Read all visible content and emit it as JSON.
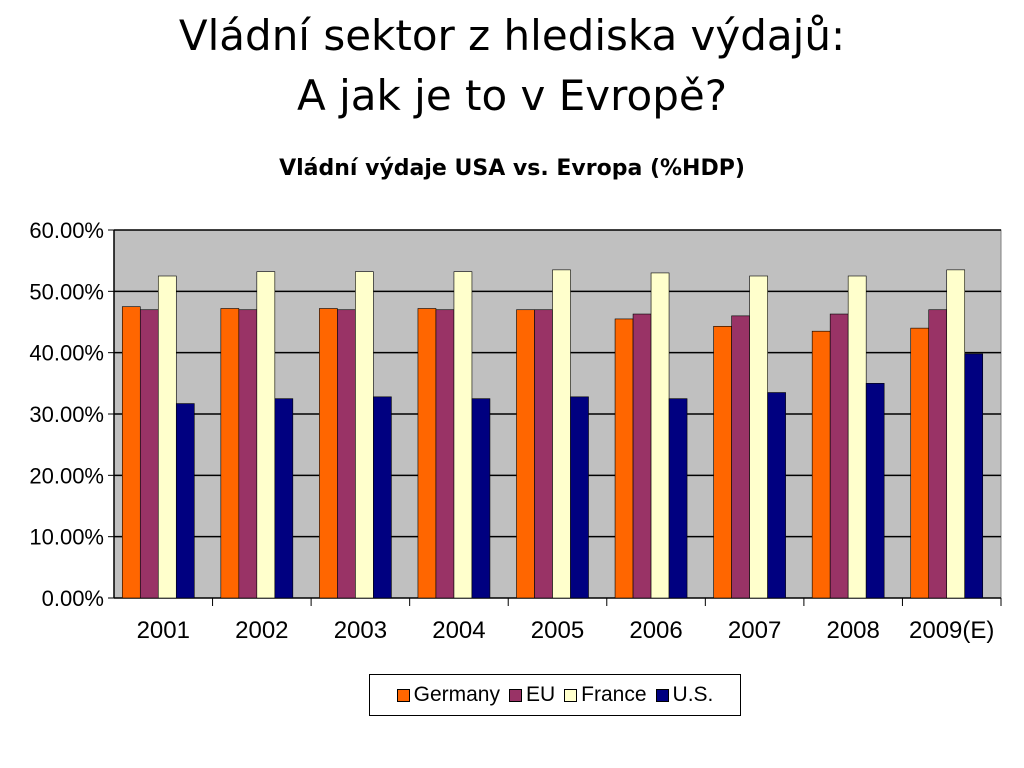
{
  "slide": {
    "title_line1": "Vládní sektor z hlediska výdajů:",
    "title_line2": "A jak je to v Evropě?"
  },
  "chart_data": {
    "type": "bar",
    "title": "Vládní výdaje USA vs. Evropa (%HDP)",
    "xlabel": "",
    "ylabel": "",
    "categories": [
      "2001",
      "2002",
      "2003",
      "2004",
      "2005",
      "2006",
      "2007",
      "2008",
      "2009(E)"
    ],
    "ylim": [
      0,
      60
    ],
    "yticks": [
      0,
      10,
      20,
      30,
      40,
      50,
      60
    ],
    "ytick_labels": [
      "0.00%",
      "10.00%",
      "20.00%",
      "30.00%",
      "40.00%",
      "50.00%",
      "60.00%"
    ],
    "grid": true,
    "plot_background": "#c0c0c0",
    "legend_position": "bottom",
    "series": [
      {
        "name": "Germany",
        "color": "#ff6600",
        "values": [
          47.5,
          47.2,
          47.2,
          47.2,
          47.0,
          45.5,
          44.3,
          43.5,
          44.0
        ]
      },
      {
        "name": "EU",
        "color": "#993366",
        "values": [
          47.0,
          47.0,
          47.0,
          47.0,
          47.0,
          46.3,
          46.0,
          46.3,
          47.0
        ]
      },
      {
        "name": "France",
        "color": "#ffffcc",
        "values": [
          52.5,
          53.2,
          53.2,
          53.2,
          53.5,
          53.0,
          52.5,
          52.5,
          53.5
        ]
      },
      {
        "name": "U.S.",
        "color": "#000080",
        "values": [
          31.7,
          32.5,
          32.8,
          32.5,
          32.8,
          32.5,
          33.5,
          35.0,
          39.8
        ]
      }
    ]
  }
}
